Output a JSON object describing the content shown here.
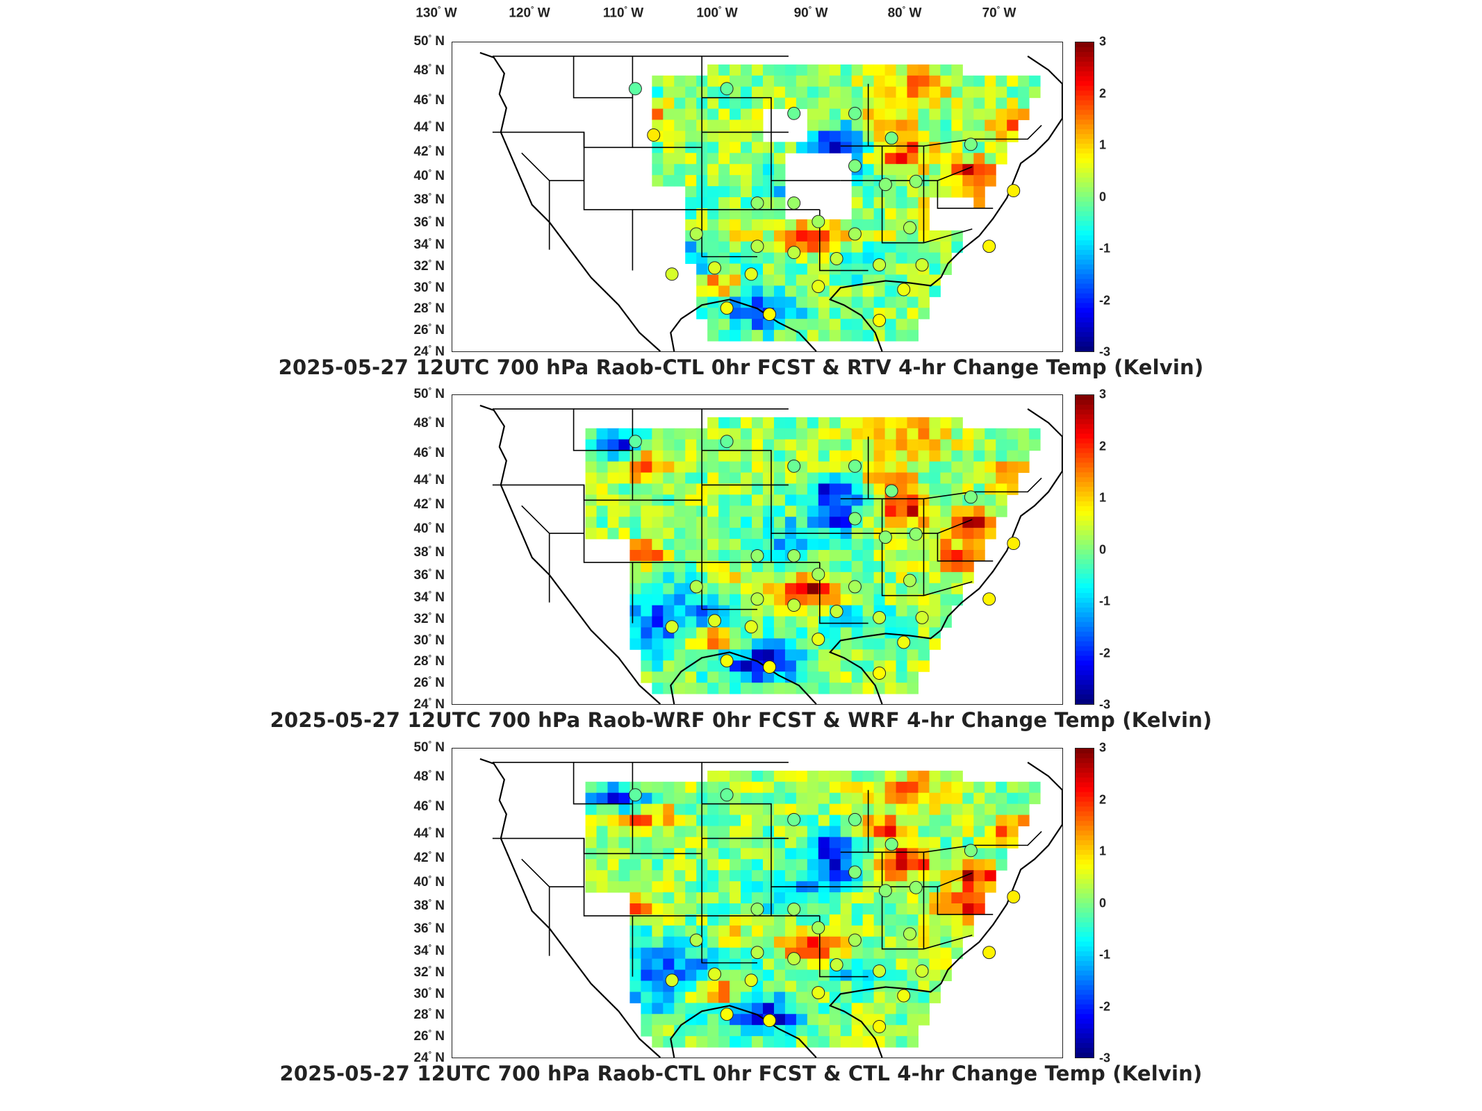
{
  "lon_labels": [
    "130",
    "120",
    "110",
    "100",
    "90",
    "80",
    "70"
  ],
  "lon_unit": "W",
  "lat_labels": [
    "50",
    "48",
    "46",
    "44",
    "42",
    "40",
    "38",
    "36",
    "34",
    "32",
    "30",
    "28",
    "26",
    "24"
  ],
  "lat_unit": "N",
  "degree_mark": "°",
  "colorbar": {
    "ticks": [
      "3",
      "2",
      "1",
      "0",
      "-1",
      "-2",
      "-3"
    ],
    "range": [
      -3,
      3
    ],
    "colormap": "jet",
    "colors": [
      "#00008f",
      "#0000ff",
      "#00ffff",
      "#ffff00",
      "#ff0000",
      "#800000"
    ]
  },
  "panels": [
    {
      "title": "2025-05-27 12UTC 700 hPa Raob-CTL 0hr FCST & RTV 4-hr Change Temp (Kelvin)",
      "domain": "partial"
    },
    {
      "title": "2025-05-27 12UTC 700 hPa Raob-WRF 0hr FCST & WRF 4-hr Change Temp (Kelvin)",
      "domain": "full"
    },
    {
      "title": "2025-05-27 12UTC 700 hPa Raob-CTL 0hr FCST & CTL 4-hr Change Temp (Kelvin)",
      "domain": "full"
    }
  ]
}
